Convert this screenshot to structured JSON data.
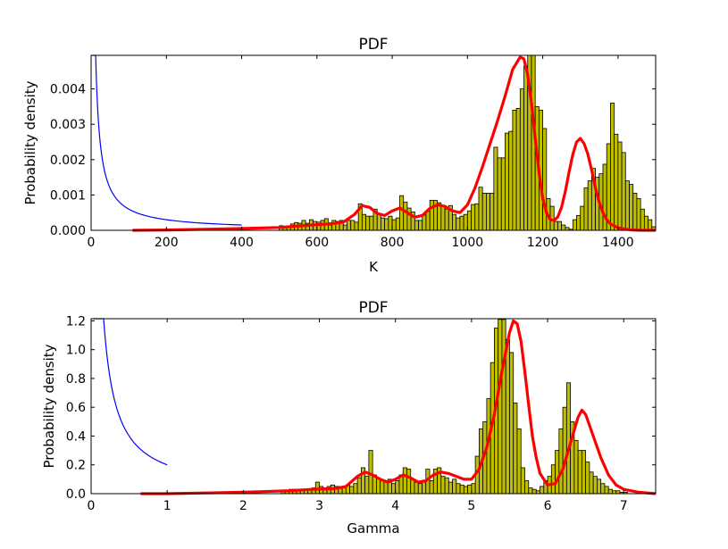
{
  "colors": {
    "bar_fill": "#bfbf00",
    "bar_edge": "#000000",
    "kde_line": "#ff0000",
    "prior_line": "#0000ff",
    "axes": "#000000",
    "background": "#ffffff"
  },
  "chart_data": [
    {
      "id": "top",
      "type": "histogram",
      "title": "PDF",
      "xlabel": "K",
      "ylabel": "Probability density",
      "xlim": [
        0,
        1500
      ],
      "ylim": [
        0,
        0.00495
      ],
      "xticks": [
        0,
        200,
        400,
        600,
        800,
        1000,
        1200,
        1400
      ],
      "xtick_labels": [
        "0",
        "200",
        "400",
        "600",
        "800",
        "1000",
        "1200",
        "1400"
      ],
      "yticks": [
        0,
        0.001,
        0.002,
        0.003,
        0.004
      ],
      "ytick_labels": [
        "0.000",
        "0.001",
        "0.002",
        "0.003",
        "0.004"
      ],
      "grid": false,
      "legend": "none",
      "histogram": {
        "bin_start": 500,
        "bin_width": 10,
        "densities": [
          0.00013,
          0.0001,
          0.0001,
          0.00018,
          0.00022,
          0.0002,
          0.00028,
          0.0002,
          0.0003,
          0.00025,
          0.00023,
          0.00028,
          0.00033,
          0.00015,
          0.00028,
          0.00025,
          0.00028,
          0.00015,
          0.00028,
          0.00028,
          0.00023,
          0.00075,
          0.00045,
          0.0004,
          0.0004,
          0.0006,
          0.00045,
          0.00035,
          0.00033,
          0.0004,
          0.0003,
          0.00035,
          0.00098,
          0.0008,
          0.00063,
          0.00052,
          0.00028,
          0.00028,
          0.00043,
          0.00055,
          0.00085,
          0.00085,
          0.00078,
          0.0007,
          0.0006,
          0.0007,
          0.00045,
          0.00035,
          0.0004,
          0.00045,
          0.00055,
          0.00073,
          0.00075,
          0.00122,
          0.00105,
          0.00105,
          0.00105,
          0.00235,
          0.00205,
          0.00205,
          0.00275,
          0.0028,
          0.0034,
          0.00345,
          0.004,
          0.00465,
          0.00495,
          0.00495,
          0.0035,
          0.0034,
          0.00288,
          0.0009,
          0.00068,
          0.00025,
          0.00025,
          0.00015,
          8e-05,
          3e-05,
          0.0003,
          0.00042,
          0.00068,
          0.0012,
          0.0014,
          0.00175,
          0.0015,
          0.0016,
          0.00187,
          0.00245,
          0.0036,
          0.00272,
          0.0025,
          0.0022,
          0.0014,
          0.0013,
          0.00105,
          0.0009,
          0.0006,
          0.0004,
          0.0003,
          0.0001
        ],
        "comment_range": [
          500,
          1500
        ]
      },
      "kde": {
        "x": [
          110,
          200,
          300,
          400,
          500,
          560,
          600,
          640,
          670,
          700,
          720,
          740,
          760,
          780,
          800,
          820,
          840,
          860,
          880,
          900,
          920,
          940,
          960,
          980,
          1000,
          1020,
          1040,
          1060,
          1080,
          1100,
          1120,
          1140,
          1150,
          1160,
          1170,
          1180,
          1190,
          1200,
          1210,
          1220,
          1230,
          1240,
          1250,
          1260,
          1270,
          1280,
          1290,
          1300,
          1310,
          1320,
          1330,
          1340,
          1350,
          1360,
          1370,
          1380,
          1400,
          1420,
          1440,
          1460,
          1480,
          1500
        ],
        "y": [
          0.0,
          1e-05,
          3e-05,
          5e-05,
          8e-05,
          0.00013,
          0.00016,
          0.00019,
          0.00023,
          0.00045,
          0.0007,
          0.00065,
          0.00048,
          0.00042,
          0.00055,
          0.00063,
          0.0005,
          0.00037,
          0.00042,
          0.00062,
          0.00072,
          0.00068,
          0.00055,
          0.0005,
          0.00072,
          0.0012,
          0.0018,
          0.00245,
          0.0031,
          0.0038,
          0.00455,
          0.0049,
          0.00485,
          0.0044,
          0.0036,
          0.0026,
          0.00165,
          0.0009,
          0.0005,
          0.0003,
          0.00028,
          0.00038,
          0.00065,
          0.0011,
          0.00165,
          0.00215,
          0.0025,
          0.0026,
          0.00245,
          0.00215,
          0.0017,
          0.0012,
          0.0008,
          0.0005,
          0.0003,
          0.00018,
          7e-05,
          3e-05,
          1e-05,
          0.0,
          0.0,
          0.0
        ]
      },
      "prior": {
        "x_start": 3,
        "x_end": 400,
        "shape": "1/x",
        "scale": 0.06
      }
    },
    {
      "id": "bottom",
      "type": "histogram",
      "title": "PDF",
      "xlabel": "Gamma",
      "ylabel": "Probability density",
      "xlim": [
        0,
        7.42
      ],
      "ylim": [
        0,
        1.215
      ],
      "xticks": [
        0,
        1,
        2,
        3,
        4,
        5,
        6,
        7
      ],
      "xtick_labels": [
        "0",
        "1",
        "2",
        "3",
        "4",
        "5",
        "6",
        "7"
      ],
      "yticks": [
        0,
        0.2,
        0.4,
        0.6,
        0.8,
        1.0,
        1.2
      ],
      "ytick_labels": [
        "0.0",
        "0.2",
        "0.4",
        "0.6",
        "0.8",
        "1.0",
        "1.2"
      ],
      "grid": false,
      "legend": "none",
      "histogram": {
        "bin_start": 2.5,
        "bin_width": 0.05,
        "densities": [
          0.02,
          0.02,
          0.03,
          0.03,
          0.02,
          0.02,
          0.03,
          0.03,
          0.04,
          0.08,
          0.05,
          0.04,
          0.05,
          0.06,
          0.05,
          0.05,
          0.04,
          0.06,
          0.05,
          0.07,
          0.11,
          0.18,
          0.12,
          0.3,
          0.13,
          0.11,
          0.09,
          0.08,
          0.1,
          0.07,
          0.09,
          0.13,
          0.18,
          0.17,
          0.1,
          0.08,
          0.07,
          0.08,
          0.17,
          0.09,
          0.17,
          0.18,
          0.12,
          0.11,
          0.08,
          0.1,
          0.07,
          0.06,
          0.05,
          0.06,
          0.07,
          0.26,
          0.45,
          0.5,
          0.66,
          0.91,
          1.15,
          1.21,
          1.21,
          1.07,
          0.98,
          0.63,
          0.45,
          0.18,
          0.09,
          0.04,
          0.03,
          0.02,
          0.05,
          0.09,
          0.12,
          0.2,
          0.3,
          0.45,
          0.6,
          0.77,
          0.5,
          0.37,
          0.3,
          0.3,
          0.22,
          0.15,
          0.12,
          0.1,
          0.07,
          0.05,
          0.03,
          0.02,
          0.02,
          0.01,
          0.01
        ],
        "comment_range": [
          2.5,
          7.05
        ]
      },
      "kde": {
        "x": [
          0.65,
          1.0,
          1.5,
          2.0,
          2.3,
          2.6,
          2.9,
          3.2,
          3.35,
          3.5,
          3.6,
          3.7,
          3.8,
          3.9,
          4.0,
          4.1,
          4.2,
          4.3,
          4.4,
          4.5,
          4.6,
          4.7,
          4.8,
          4.9,
          5.0,
          5.1,
          5.2,
          5.3,
          5.4,
          5.5,
          5.55,
          5.6,
          5.65,
          5.7,
          5.75,
          5.8,
          5.85,
          5.9,
          6.0,
          6.1,
          6.2,
          6.3,
          6.4,
          6.45,
          6.5,
          6.6,
          6.7,
          6.8,
          6.9,
          7.0,
          7.2,
          7.42
        ],
        "y": [
          0.0,
          0.0,
          0.005,
          0.01,
          0.015,
          0.02,
          0.03,
          0.035,
          0.05,
          0.12,
          0.15,
          0.13,
          0.1,
          0.08,
          0.1,
          0.13,
          0.11,
          0.08,
          0.09,
          0.13,
          0.15,
          0.14,
          0.12,
          0.1,
          0.1,
          0.17,
          0.32,
          0.55,
          0.85,
          1.12,
          1.2,
          1.18,
          1.06,
          0.85,
          0.62,
          0.4,
          0.25,
          0.14,
          0.06,
          0.07,
          0.17,
          0.35,
          0.53,
          0.58,
          0.55,
          0.4,
          0.25,
          0.13,
          0.06,
          0.03,
          0.01,
          0.0
        ]
      },
      "prior": {
        "x_start": 0.03,
        "x_end": 1.0,
        "shape": "1/x",
        "scale": 0.2
      }
    }
  ]
}
